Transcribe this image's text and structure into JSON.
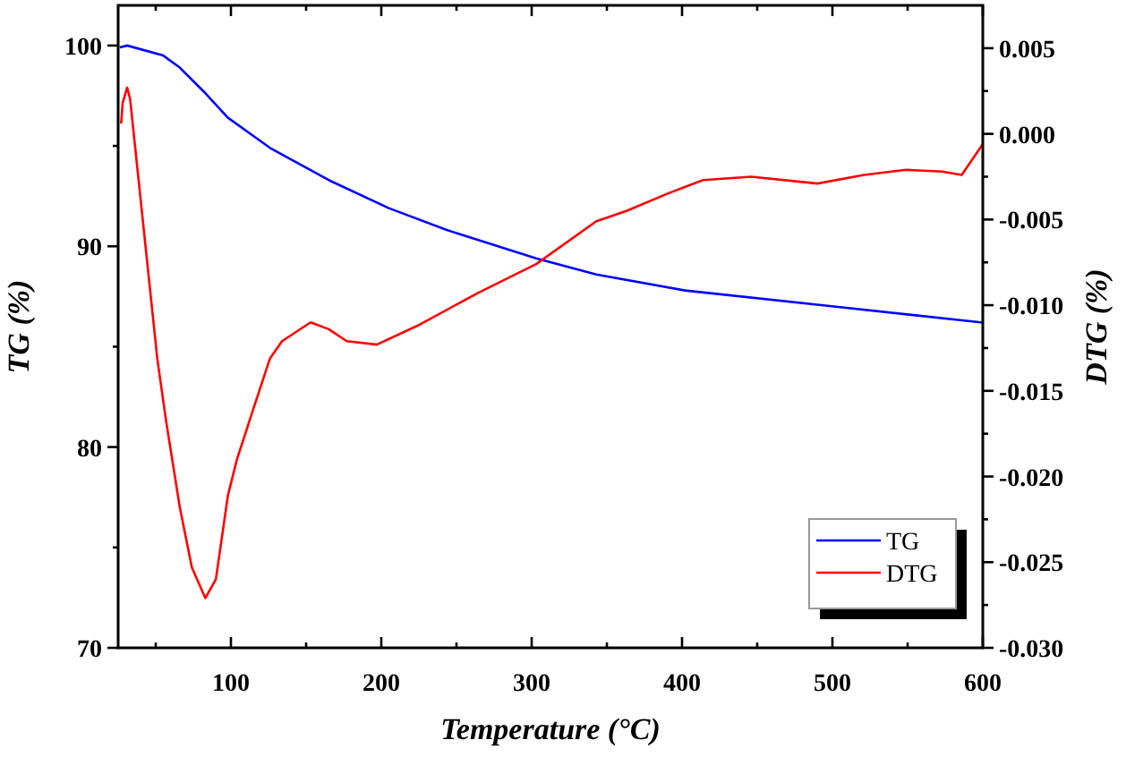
{
  "chart_data": {
    "type": "line",
    "xlabel": "Temperature (°C)",
    "ylabel": "TG (%)",
    "y2label": "DTG (%)",
    "xlim": [
      25,
      600
    ],
    "xticks": [
      {
        "value": 50,
        "label": null
      },
      100,
      {
        "value": 150,
        "label": null
      },
      200,
      {
        "value": 250,
        "label": null
      },
      300,
      {
        "value": 350,
        "label": null
      },
      400,
      {
        "value": 450,
        "label": null
      },
      500,
      {
        "value": 550,
        "label": null
      },
      600
    ],
    "ylim": [
      70,
      102
    ],
    "yticks": [
      70,
      {
        "value": 75,
        "label": null
      },
      80,
      {
        "value": 85,
        "label": null
      },
      90,
      {
        "value": 95,
        "label": null
      },
      100
    ],
    "y2lim": [
      -0.03,
      0.0075
    ],
    "y2ticks": [
      {
        "value": -0.03,
        "label": "-0.030"
      },
      {
        "value": -0.0275,
        "label": null
      },
      {
        "value": -0.025,
        "label": "-0.025"
      },
      {
        "value": -0.0225,
        "label": null
      },
      {
        "value": -0.02,
        "label": "-0.020"
      },
      {
        "value": -0.0175,
        "label": null
      },
      {
        "value": -0.015,
        "label": "-0.015"
      },
      {
        "value": -0.0125,
        "label": null
      },
      {
        "value": -0.01,
        "label": "-0.010"
      },
      {
        "value": -0.0075,
        "label": null
      },
      {
        "value": -0.005,
        "label": "-0.005"
      },
      {
        "value": -0.0025,
        "label": null
      },
      {
        "value": 0,
        "label": "0.000"
      },
      {
        "value": 0.0025,
        "label": null
      },
      {
        "value": 0.005,
        "label": "0.005"
      }
    ],
    "legend": "bottom right",
    "grid": false,
    "marker": "none",
    "line_style": "solid",
    "series": [
      {
        "name": "TG",
        "color": "#0000ff",
        "x": [
          26,
          31,
          55,
          66,
          82,
          98,
          126,
          165,
          205,
          244,
          303,
          343,
          402,
          501,
          600
        ],
        "values": [
          99.9,
          100.0,
          99.5,
          98.9,
          97.7,
          96.4,
          94.9,
          93.3,
          91.9,
          90.8,
          89.4,
          88.6,
          87.8,
          87.0,
          86.2
        ]
      },
      {
        "name": "DTG",
        "color": "#ff0000",
        "axis": "y2",
        "x": [
          27,
          28,
          31,
          33,
          51,
          56.6,
          66,
          74,
          83,
          90,
          98,
          104,
          114,
          126,
          134,
          153,
          165,
          177,
          197,
          224,
          264,
          303,
          343,
          363,
          390,
          414,
          446,
          490,
          521,
          549,
          573,
          586,
          600
        ],
        "values": [
          0.0006,
          0.0018,
          0.0027,
          0.002,
          -0.0131,
          -0.0166,
          -0.0218,
          -0.0253,
          -0.0271,
          -0.026,
          -0.0211,
          -0.019,
          -0.0163,
          -0.0131,
          -0.0121,
          -0.011,
          -0.0114,
          -0.0121,
          -0.0123,
          -0.0112,
          -0.0093,
          -0.0076,
          -0.0051,
          -0.0045,
          -0.0035,
          -0.0027,
          -0.0025,
          -0.0029,
          -0.0024,
          -0.0021,
          -0.0022,
          -0.0024,
          -0.0006
        ]
      }
    ]
  }
}
